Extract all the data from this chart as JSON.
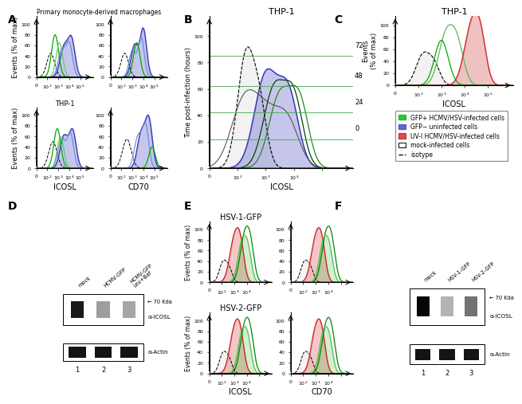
{
  "panel_A_title": "Primary monocyte-derived macrophages",
  "panel_A_subtitle": "THP-1",
  "panel_B_title": "THP-1",
  "panel_B_xlabel": "ICOSL",
  "panel_B_ylabel": "Time post-infection (hours)",
  "panel_B_labels": [
    "72",
    "48",
    "24",
    "0"
  ],
  "panel_C_title": "THP-1",
  "panel_C_xlabel": "ICOSL",
  "panel_E_title_top": "HSV-1-GFP",
  "panel_E_title_bottom": "HSV-2-GFP",
  "panel_E_xlabel": "ICOSL",
  "panel_E_xlabel2": "CD70",
  "legend_entries": [
    [
      "GFP+ HCMV/HSV-infected cells",
      "#00bb00"
    ],
    [
      "GFP− uninfected cells",
      "#4444bb"
    ],
    [
      "UV-I HCMV/HSV-infected cells",
      "#cc2222"
    ],
    [
      "mock-infected cells",
      "#aaaaaa"
    ],
    [
      "isotype",
      "#000000"
    ]
  ],
  "xlabel_ICOSL": "ICOSL",
  "xlabel_CD70": "CD70",
  "ylabel_events": "Events (% of max)",
  "panel_label_fontsize": 10,
  "bg_color": "#ffffff",
  "green": "#00aa00",
  "blue": "#3333bb",
  "red": "#cc2222",
  "grey": "#aaaaaa"
}
